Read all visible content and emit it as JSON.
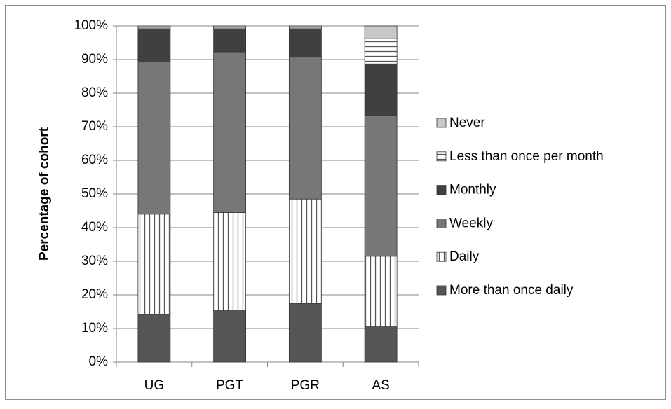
{
  "chart_data": {
    "type": "stacked_bar",
    "y_label": "Percentage of cohort",
    "categories": [
      "UG",
      "PGT",
      "PGR",
      "AS"
    ],
    "series": [
      {
        "name": "More than once daily",
        "color": "#555555",
        "values": [
          14.2,
          15.3,
          17.5,
          10.5
        ]
      },
      {
        "name": "Daily",
        "color": "#ffffff",
        "pattern": "vertical",
        "values": [
          29.8,
          29.2,
          31.0,
          21.0
        ]
      },
      {
        "name": "Weekly",
        "color": "#777777",
        "values": [
          45.3,
          47.8,
          42.2,
          41.8
        ]
      },
      {
        "name": "Monthly",
        "color": "#404040",
        "values": [
          9.9,
          6.9,
          8.5,
          15.4
        ]
      },
      {
        "name": "Less than once per month",
        "color": "#ffffff",
        "pattern": "horizontal",
        "values": [
          0.4,
          0.4,
          0.4,
          7.5
        ]
      },
      {
        "name": "Never",
        "color": "#c8c8c8",
        "values": [
          0.4,
          0.4,
          0.4,
          3.8
        ]
      }
    ],
    "ylim": [
      0,
      100
    ],
    "yticks": [
      {
        "value": 0,
        "label": "0%"
      },
      {
        "value": 10,
        "label": "10%"
      },
      {
        "value": 20,
        "label": "20%"
      },
      {
        "value": 30,
        "label": "30%"
      },
      {
        "value": 40,
        "label": "40%"
      },
      {
        "value": 50,
        "label": "50%"
      },
      {
        "value": 60,
        "label": "60%"
      },
      {
        "value": 70,
        "label": "70%"
      },
      {
        "value": 80,
        "label": "80%"
      },
      {
        "value": 90,
        "label": "90%"
      },
      {
        "value": 100,
        "label": "100%"
      }
    ],
    "grid": true,
    "legend": "right"
  }
}
